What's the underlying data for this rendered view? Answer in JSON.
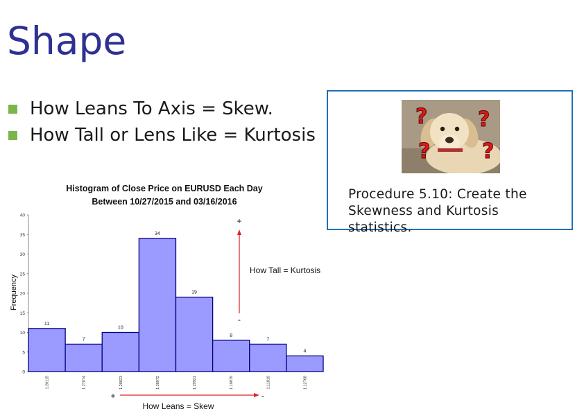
{
  "slide": {
    "title": "Shape",
    "bullets": [
      "How Leans To Axis = Skew.",
      "How Tall or Lens Like = Kurtosis"
    ],
    "callout": {
      "image_icon": "dog-with-question-marks",
      "text": "Procedure 5.10: Create the Skewness and Kurtosis statistics."
    },
    "colors": {
      "title": "#2e3192",
      "bullet": "#7ab648",
      "callout_border": "#1f6fb8",
      "bar_fill": "#9b9bff",
      "bar_stroke": "#000080",
      "arrow": "#e02020"
    }
  },
  "chart_data": {
    "type": "bar",
    "title": "Histogram of Close Price on EURUSD Each Day",
    "subtitle": "Between 10/27/2015 and 03/16/2016",
    "xlabel": "",
    "ylabel": "Frequency",
    "ylim": [
      0,
      40
    ],
    "yticks": [
      0,
      5,
      10,
      15,
      20,
      25,
      30,
      35,
      40
    ],
    "categories": [
      "1.26115",
      "1.27074",
      "1.28023",
      "1.28972",
      "1.29921",
      "1.10879",
      "1.11819",
      "1.12768"
    ],
    "values": [
      11,
      7,
      10,
      34,
      19,
      8,
      7,
      4
    ],
    "grid": false,
    "legend": "none",
    "annotations": {
      "kurtosis": {
        "label": "How Tall = Kurtosis",
        "top_sign": "+",
        "bottom_sign": "-"
      },
      "skew": {
        "label": "How Leans = Skew",
        "left_sign": "+",
        "right_sign": "-"
      }
    }
  }
}
